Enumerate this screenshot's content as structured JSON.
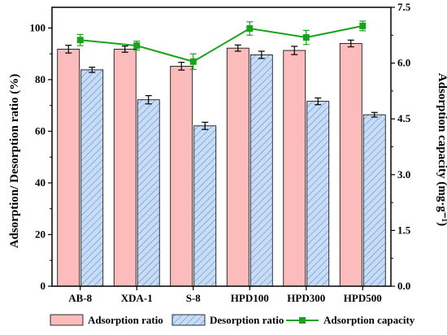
{
  "chart_data": {
    "type": "bar",
    "categories": [
      "AB-8",
      "XDA-1",
      "S-8",
      "HPD100",
      "HPD300",
      "HPD500"
    ],
    "series": [
      {
        "name": "Adsorption ratio",
        "type": "bar",
        "axis": "left",
        "values": [
          91.8,
          91.8,
          85.2,
          92.2,
          91.3,
          94.0
        ],
        "errors": [
          1.5,
          1.2,
          1.5,
          1.2,
          1.6,
          1.3
        ]
      },
      {
        "name": "Desorption ratio",
        "type": "bar",
        "axis": "left",
        "values": [
          83.8,
          72.2,
          62.1,
          89.6,
          71.6,
          66.4
        ],
        "errors": [
          1.0,
          1.6,
          1.4,
          1.4,
          1.3,
          0.9
        ]
      },
      {
        "name": "Adsorption capacity",
        "type": "line",
        "axis": "right",
        "values": [
          6.62,
          6.47,
          6.04,
          6.93,
          6.69,
          7.0
        ],
        "errors": [
          0.15,
          0.12,
          0.21,
          0.18,
          0.19,
          0.13
        ]
      }
    ],
    "ylabel": "Adsorption/ Desorption ratio (%)",
    "ylabel_right": "Adsorption capacity (mg·g⁻¹)",
    "ylim": [
      0,
      108
    ],
    "ylim_right": [
      0,
      7.5
    ],
    "yticks": [
      "0",
      "20",
      "40",
      "60",
      "80",
      "100"
    ],
    "yticks_right": [
      "0.0",
      "1.5",
      "3.0",
      "4.5",
      "6.0",
      "7.5"
    ],
    "legend_position": "bottom",
    "grid": false,
    "colors": {
      "adsorption_fill": "#fdbcbc",
      "desorption_fill": "#c8dcf5",
      "hatch": "#5b8fd0",
      "capacity_line": "#1aa31a",
      "axis": "#000000"
    }
  }
}
